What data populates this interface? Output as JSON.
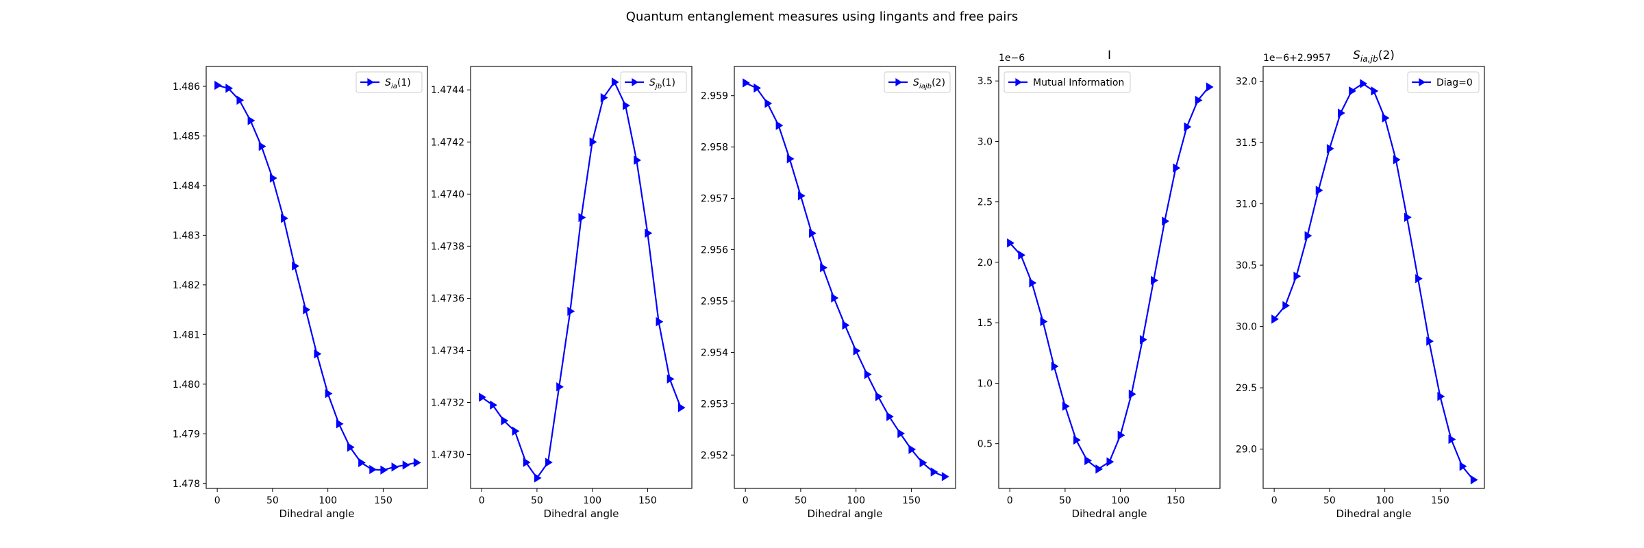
{
  "figure": {
    "title": "Quantum entanglement measures using lingants and free pairs"
  },
  "chart_data": [
    {
      "type": "line",
      "title": "",
      "xlabel": "Dihedral angle",
      "ylabel": "",
      "offset_text": "",
      "x": [
        0,
        10,
        20,
        30,
        40,
        50,
        60,
        70,
        80,
        90,
        100,
        110,
        120,
        130,
        140,
        150,
        160,
        170,
        180
      ],
      "series": [
        {
          "name": "S_ia(1)",
          "legend_main": "S",
          "legend_sub": "ia",
          "legend_tail": "(1)",
          "color": "#0000ff",
          "values": [
            1.48602,
            1.48596,
            1.48572,
            1.48531,
            1.48479,
            1.48415,
            1.48334,
            1.48238,
            1.4815,
            1.48061,
            1.47981,
            1.4792,
            1.47873,
            1.47842,
            1.47828,
            1.47827,
            1.47833,
            1.47837,
            1.47842
          ]
        }
      ],
      "xlim": [
        -10,
        190
      ],
      "ylim": [
        1.4779,
        1.4864
      ],
      "xticks": [
        0,
        50,
        100,
        150
      ],
      "yticks": [
        1.478,
        1.479,
        1.48,
        1.481,
        1.482,
        1.483,
        1.484,
        1.485,
        1.486
      ],
      "ydecimals": 3,
      "legend": "upper right",
      "grid": false,
      "marker": "triangle-right"
    },
    {
      "type": "line",
      "title": "",
      "xlabel": "Dihedral angle",
      "ylabel": "",
      "offset_text": "",
      "x": [
        0,
        10,
        20,
        30,
        40,
        50,
        60,
        70,
        80,
        90,
        100,
        110,
        120,
        130,
        140,
        150,
        160,
        170,
        180
      ],
      "series": [
        {
          "name": "S_jb(1)",
          "legend_main": "S",
          "legend_sub": "jb",
          "legend_tail": "(1)",
          "color": "#0000ff",
          "values": [
            1.47322,
            1.47319,
            1.47313,
            1.47309,
            1.47297,
            1.47291,
            1.47297,
            1.47326,
            1.47355,
            1.47391,
            1.4742,
            1.47437,
            1.47443,
            1.47434,
            1.47413,
            1.47385,
            1.47351,
            1.47329,
            1.47318
          ]
        }
      ],
      "xlim": [
        -10,
        190
      ],
      "ylim": [
        1.47287,
        1.47449
      ],
      "xticks": [
        0,
        50,
        100,
        150
      ],
      "yticks": [
        1.473,
        1.4732,
        1.4734,
        1.4736,
        1.4738,
        1.474,
        1.4742,
        1.4744
      ],
      "ydecimals": 4,
      "legend": "upper right",
      "grid": false,
      "marker": "triangle-right"
    },
    {
      "type": "line",
      "title": "",
      "xlabel": "Dihedral angle",
      "ylabel": "",
      "offset_text": "",
      "x": [
        0,
        10,
        20,
        30,
        40,
        50,
        60,
        70,
        80,
        90,
        100,
        110,
        120,
        130,
        140,
        150,
        160,
        170,
        180
      ],
      "series": [
        {
          "name": "S_iajb(2)",
          "legend_main": "S",
          "legend_sub": "iajb",
          "legend_tail": "(2)",
          "color": "#0000ff",
          "values": [
            2.95925,
            2.95915,
            2.95885,
            2.95842,
            2.95777,
            2.95705,
            2.95632,
            2.95565,
            2.95506,
            2.95453,
            2.95403,
            2.95357,
            2.95314,
            2.95275,
            2.95242,
            2.95211,
            2.95185,
            2.95167,
            2.95158
          ]
        }
      ],
      "xlim": [
        -10,
        190
      ],
      "ylim": [
        2.95135,
        2.95957
      ],
      "xticks": [
        0,
        50,
        100,
        150
      ],
      "yticks": [
        2.952,
        2.953,
        2.954,
        2.955,
        2.956,
        2.957,
        2.958,
        2.959
      ],
      "ydecimals": 3,
      "legend": "upper right",
      "grid": false,
      "marker": "triangle-right"
    },
    {
      "type": "line",
      "title": "I",
      "xlabel": "Dihedral angle",
      "ylabel": "",
      "offset_text": "1e−6",
      "x": [
        0,
        10,
        20,
        30,
        40,
        50,
        60,
        70,
        80,
        90,
        100,
        110,
        120,
        130,
        140,
        150,
        160,
        170,
        180
      ],
      "series": [
        {
          "name": "Mutual Information",
          "legend_main": "Mutual Information",
          "legend_sub": "",
          "legend_tail": "",
          "color": "#0000ff",
          "values": [
            2.16,
            2.06,
            1.83,
            1.51,
            1.14,
            0.81,
            0.53,
            0.36,
            0.29,
            0.35,
            0.57,
            0.91,
            1.36,
            1.85,
            2.34,
            2.78,
            3.12,
            3.34,
            3.45
          ]
        }
      ],
      "xlim": [
        -10,
        190
      ],
      "ylim": [
        0.13,
        3.62
      ],
      "xticks": [
        0,
        50,
        100,
        150
      ],
      "yticks": [
        0.5,
        1.0,
        1.5,
        2.0,
        2.5,
        3.0,
        3.5
      ],
      "ydecimals": 1,
      "legend": "upper left",
      "grid": false,
      "marker": "triangle-right"
    },
    {
      "type": "line",
      "title": "S_ia,jb(2)",
      "title_main": "S",
      "title_sub": "ia,jb",
      "title_tail": "(2)",
      "xlabel": "Dihedral angle",
      "ylabel": "",
      "offset_text": "1e−6+2.9957",
      "x": [
        0,
        10,
        20,
        30,
        40,
        50,
        60,
        70,
        80,
        90,
        100,
        110,
        120,
        130,
        140,
        150,
        160,
        170,
        180
      ],
      "series": [
        {
          "name": "Diag=0",
          "legend_main": "Diag=0",
          "legend_sub": "",
          "legend_tail": "",
          "color": "#0000ff",
          "values": [
            30.06,
            30.17,
            30.41,
            30.74,
            31.11,
            31.45,
            31.74,
            31.92,
            31.98,
            31.92,
            31.7,
            31.36,
            30.89,
            30.39,
            29.88,
            29.43,
            29.08,
            28.86,
            28.75
          ]
        }
      ],
      "xlim": [
        -10,
        190
      ],
      "ylim": [
        28.68,
        32.12
      ],
      "xticks": [
        0,
        50,
        100,
        150
      ],
      "yticks": [
        29.0,
        29.5,
        30.0,
        30.5,
        31.0,
        31.5,
        32.0
      ],
      "ydecimals": 1,
      "legend": "upper right",
      "grid": false,
      "marker": "triangle-right"
    }
  ]
}
